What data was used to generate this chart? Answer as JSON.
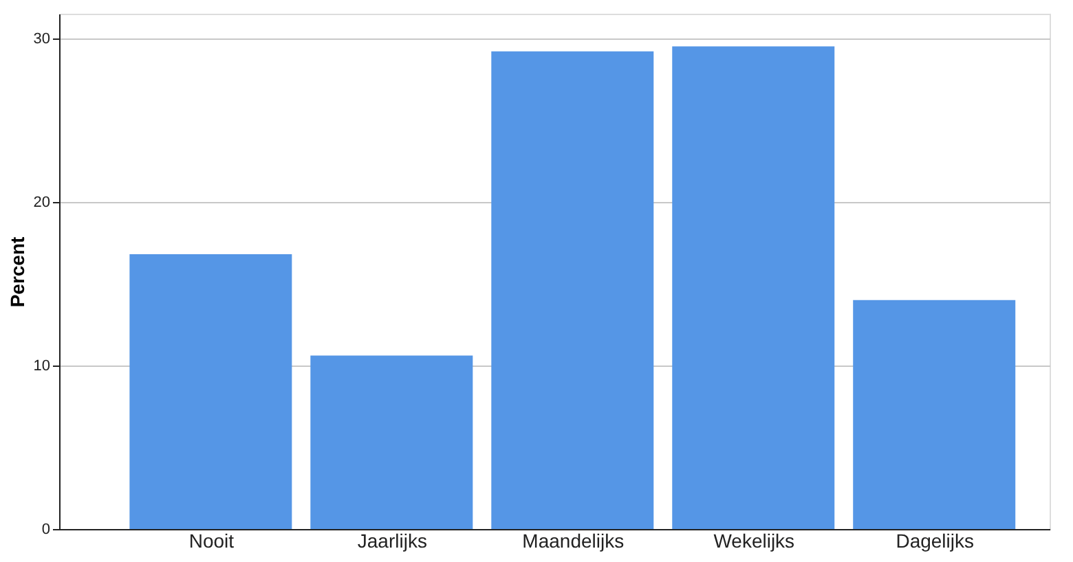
{
  "chart_data": {
    "type": "bar",
    "ylabel": "Percent",
    "categories": [
      "Nooit",
      "Jaarlijks",
      "Maandelijks",
      "Wekelijks",
      "Dagelijks"
    ],
    "values": [
      16.8,
      10.6,
      29.2,
      29.5,
      14.0
    ],
    "color": "#5596e6",
    "ylim": [
      0,
      31.5
    ],
    "yticks": [
      0,
      10,
      20,
      30
    ],
    "grid": "y"
  }
}
